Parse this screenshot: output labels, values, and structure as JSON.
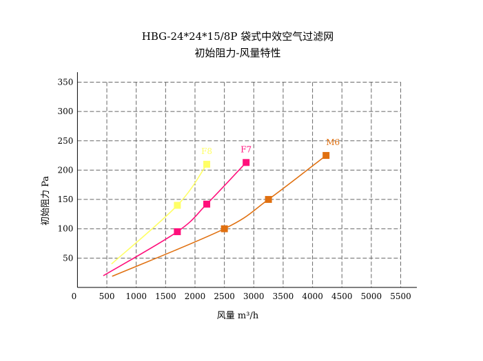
{
  "chart_data": {
    "type": "line",
    "title": "HBG-24*24*15/8P 袋式中效空气过滤网",
    "subtitle": "初始阻力-风量特性",
    "xlabel": "风量  m³/h",
    "ylabel": "初始阻力 Pa",
    "xlim": [
      0,
      5750
    ],
    "ylim": [
      0,
      365
    ],
    "xticks": [
      0,
      500,
      1000,
      1500,
      2000,
      2500,
      3000,
      3500,
      4000,
      4500,
      5000,
      5500
    ],
    "yticks": [
      50,
      100,
      150,
      200,
      250,
      300,
      350
    ],
    "grid": true,
    "series": [
      {
        "name": "F8",
        "color": "#ffff66",
        "curve": [
          [
            580,
            40
          ],
          [
            1700,
            140
          ],
          [
            2200,
            210
          ]
        ],
        "markers": [
          [
            1700,
            140
          ],
          [
            2200,
            210
          ]
        ]
      },
      {
        "name": "F7",
        "color": "#ff0f7b",
        "curve": [
          [
            440,
            20
          ],
          [
            1700,
            95
          ],
          [
            2200,
            142
          ],
          [
            2870,
            213
          ]
        ],
        "markers": [
          [
            1700,
            95
          ],
          [
            2200,
            142
          ],
          [
            2870,
            213
          ]
        ]
      },
      {
        "name": "M6",
        "color": "#e07010",
        "curve": [
          [
            590,
            19
          ],
          [
            2500,
            100
          ],
          [
            3250,
            150
          ],
          [
            4230,
            225
          ]
        ],
        "markers": [
          [
            2500,
            100
          ],
          [
            3250,
            150
          ],
          [
            4230,
            225
          ]
        ]
      }
    ]
  }
}
